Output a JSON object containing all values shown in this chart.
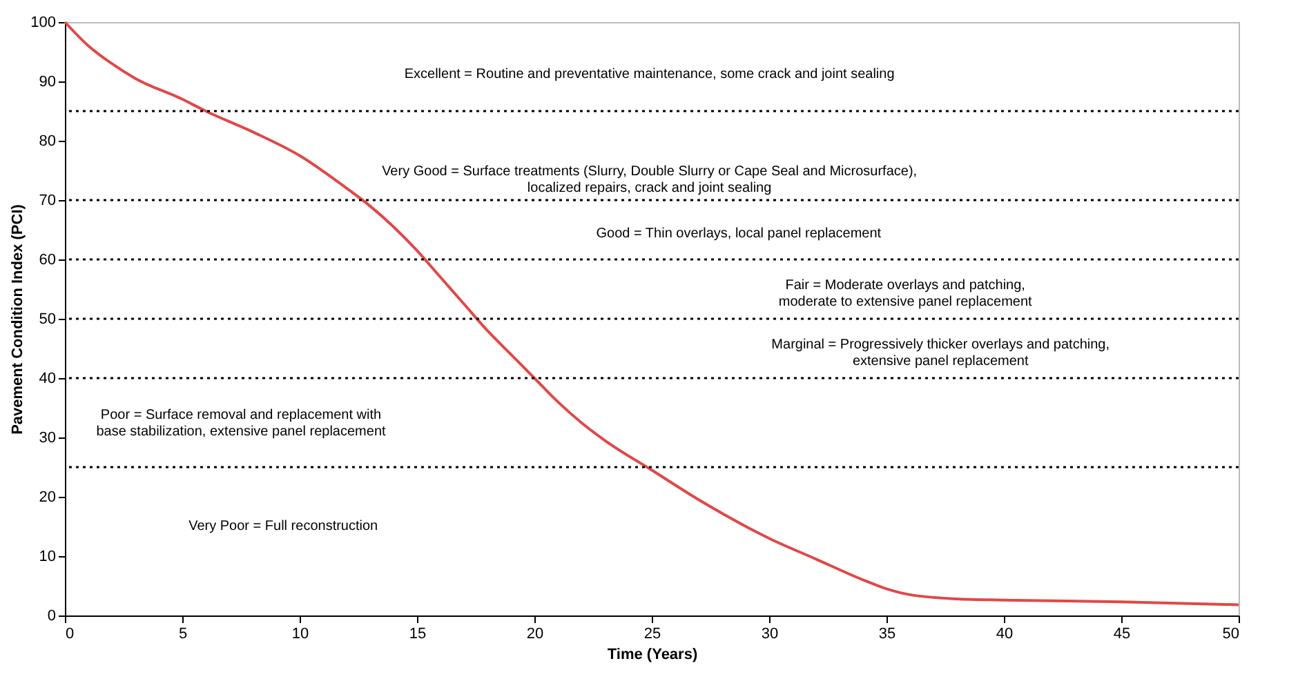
{
  "chart_data": {
    "type": "line",
    "xlabel": "Time (Years)",
    "ylabel": "Pavement Condition Index (PCI)",
    "x": [
      0,
      1,
      2,
      3,
      5,
      6,
      8,
      10,
      12,
      13,
      14,
      15,
      16,
      17,
      18,
      19,
      20,
      21,
      22,
      23,
      25,
      27,
      30,
      32,
      34,
      35,
      36,
      38,
      40,
      45,
      50
    ],
    "series": [
      {
        "color": "#e04848",
        "values": [
          100,
          96,
          93,
          90.5,
          87,
          85,
          81.5,
          77.5,
          72,
          69,
          65.5,
          61.5,
          57,
          52.5,
          48,
          44,
          40,
          36,
          32.5,
          29.5,
          24.5,
          19.5,
          13,
          9.5,
          6,
          4.5,
          3.5,
          2.8,
          2.6,
          2.3,
          1.8
        ]
      }
    ],
    "xlim": [
      0,
      50
    ],
    "xticks": [
      0,
      5,
      10,
      15,
      20,
      25,
      30,
      35,
      40,
      45,
      50
    ],
    "ylim": [
      0,
      100
    ],
    "yticks": [
      0,
      10,
      20,
      30,
      40,
      50,
      60,
      70,
      80,
      90,
      100
    ],
    "ref_lines": [
      {
        "axis": "y",
        "value": 85,
        "color": "#000000",
        "line_style": "dotted"
      },
      {
        "axis": "y",
        "value": 70,
        "color": "#000000",
        "line_style": "dotted"
      },
      {
        "axis": "y",
        "value": 60,
        "color": "#000000",
        "line_style": "dotted"
      },
      {
        "axis": "y",
        "value": 50,
        "color": "#000000",
        "line_style": "dotted"
      },
      {
        "axis": "y",
        "value": 40,
        "color": "#000000",
        "line_style": "dotted"
      },
      {
        "axis": "y",
        "value": 25,
        "color": "#000000",
        "line_style": "dotted"
      }
    ],
    "annotations": [
      "Excellent = Routine and preventative maintenance, some crack and joint sealing",
      "Very Good = Surface treatments (Slurry, Double Slurry or Cape Seal and Microsurface),\nlocalized repairs, crack and joint sealing",
      "Good = Thin overlays, local panel replacement",
      "Fair = Moderate overlays and patching,\nmoderate to extensive panel replacement",
      "Marginal = Progressively thicker overlays and patching,\nextensive panel replacement",
      "Poor = Surface removal and replacement with\nbase stabilization, extensive panel replacement",
      "Very Poor = Full reconstruction"
    ],
    "grid": false
  }
}
